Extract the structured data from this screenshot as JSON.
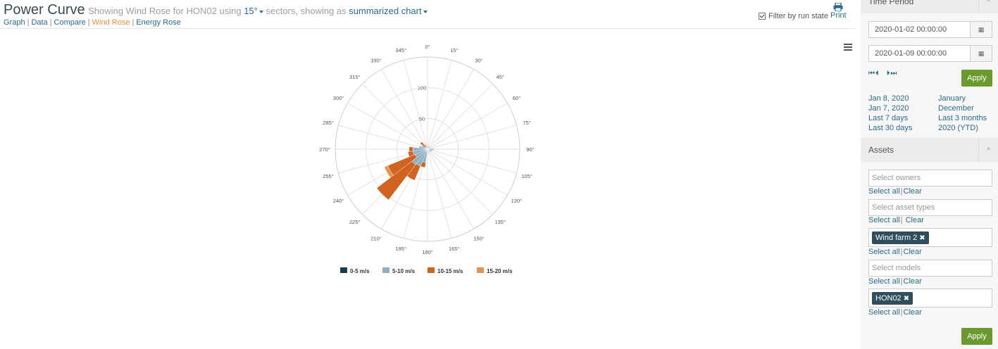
{
  "header": {
    "title": "Power Curve",
    "subtitle_prefix": "Showing Wind Rose for HON02 using",
    "sector_value": "15°",
    "subtitle_mid": "sectors, showing as",
    "display_value": "summarized chart",
    "nav": [
      "Graph",
      "Data",
      "Compare",
      "Wind Rose",
      "Energy Rose"
    ],
    "active_nav": "Wind Rose",
    "filter_label": "Filter by run state",
    "filter_checked": true,
    "print_label": "Print"
  },
  "chart_data": {
    "type": "polar-stacked-bar",
    "direction_labels": [
      "0°",
      "15°",
      "30°",
      "45°",
      "60°",
      "75°",
      "90°",
      "105°",
      "120°",
      "135°",
      "150°",
      "165°",
      "180°",
      "195°",
      "210°",
      "225°",
      "240°",
      "255°",
      "270°",
      "285°",
      "300°",
      "315°",
      "330°",
      "345°"
    ],
    "radial_ticks": [
      50,
      100
    ],
    "rmax": 150,
    "categories": [
      "0°",
      "15°",
      "30°",
      "45°",
      "60°",
      "75°",
      "90°",
      "105°",
      "120°",
      "135°",
      "150°",
      "165°",
      "180°",
      "195°",
      "210°",
      "225°",
      "240°",
      "255°",
      "270°",
      "285°",
      "300°",
      "315°",
      "330°",
      "345°"
    ],
    "series": [
      {
        "name": "0-5 m/s",
        "color": "#15404f",
        "values": [
          2,
          2,
          2,
          2,
          2,
          2,
          2,
          2,
          2,
          2,
          2,
          2,
          2,
          2,
          2,
          2,
          2,
          2,
          2,
          2,
          2,
          2,
          2,
          2
        ]
      },
      {
        "name": "5-10 m/s",
        "color": "#8fafc4",
        "values": [
          3,
          3,
          3,
          3,
          3,
          3,
          8,
          6,
          5,
          2,
          2,
          2,
          3,
          20,
          28,
          30,
          20,
          22,
          22,
          12,
          8,
          3,
          2,
          3
        ]
      },
      {
        "name": "10-15 m/s",
        "color": "#d06320",
        "values": [
          0,
          0,
          0,
          0,
          0,
          0,
          0,
          0,
          0,
          0,
          0,
          0,
          0,
          8,
          25,
          72,
          48,
          8,
          6,
          0,
          0,
          10,
          4,
          0
        ],
        "stack": "base"
      },
      {
        "name": "15-20 m/s",
        "color": "#e39353",
        "values": [
          0,
          0,
          0,
          0,
          0,
          0,
          0,
          0,
          0,
          0,
          0,
          0,
          0,
          0,
          0,
          0,
          6,
          0,
          0,
          0,
          0,
          0,
          0,
          0
        ]
      }
    ]
  },
  "chart_menu_icon": "hamburger-icon",
  "sidebar": {
    "time_period": {
      "title": "Time Period",
      "start": "2020-01-02 00:00:00",
      "end": "2020-01-09 00:00:00",
      "nav_glyphs": [
        "⏮",
        "⏴",
        "⏵",
        "⏭"
      ],
      "apply_label": "Apply",
      "quick_left": [
        "Jan 8, 2020",
        "Jan 7, 2020",
        "Last 7 days",
        "Last 30 days"
      ],
      "quick_right": [
        "January",
        "December",
        "Last 3 months",
        "2020 (YTD)"
      ]
    },
    "assets": {
      "title": "Assets",
      "owners_placeholder": "Select owners",
      "asset_types_placeholder": "Select asset types",
      "site_tag": "Wind farm 2",
      "models_placeholder": "Select models",
      "turbine_tag": "HON02",
      "select_all": "Select all",
      "clear": "Clear",
      "apply_label": "Apply"
    }
  }
}
